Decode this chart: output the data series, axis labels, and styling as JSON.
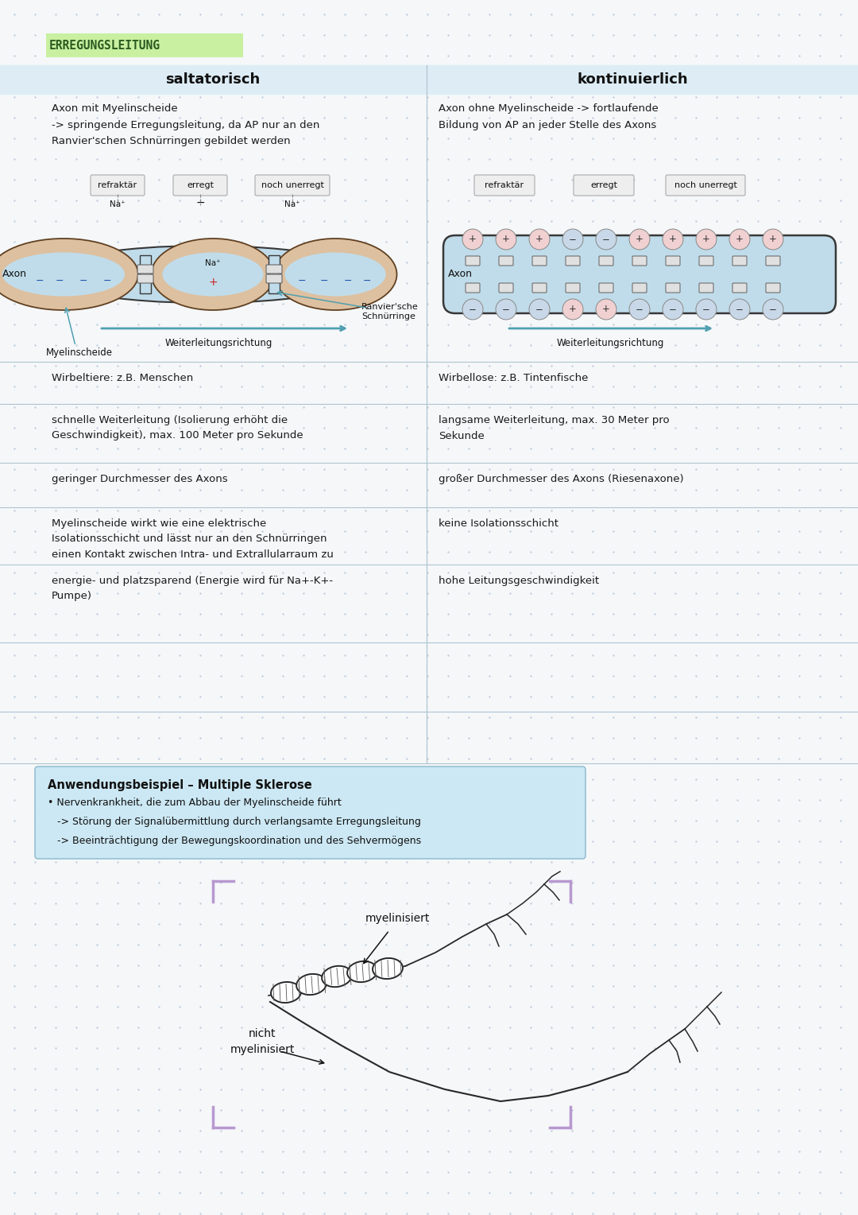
{
  "title": "ERREGUNGSLEITUNG",
  "title_bg": "#c8f0a0",
  "bg_color": "#f5f7f9",
  "header_bg": "#deedf5",
  "saltatorisch": "saltatorisch",
  "kontinuierlich": "kontinuierlich",
  "left_desc": "Axon mit Myelinscheide\n-> springende Erregungsleitung, da AP nur an den\nRanvier'schen Schnürringen gebildet werden",
  "right_desc": "Axon ohne Myelinscheide -> fortlaufende\nBildung von AP an jeder Stelle des Axons",
  "left_state_labels": [
    "refraktär",
    "erregt",
    "noch unerregt"
  ],
  "right_state_labels": [
    "refraktär",
    "erregt",
    "noch unerregt"
  ],
  "axon_label_left": "Axon",
  "myelin_label": "Myelinscheide",
  "weiter_label_left": "Weiterleitungsrichtung",
  "ranvier_label": "Ranvier'sche\nSchnürringe",
  "axon_label_right": "Axon",
  "weiter_label_right": "Weiterleitungsrichtung",
  "comparison_left": [
    "Wirbeltiere: z.B. Menschen",
    "schnelle Weiterleitung (Isolierung erhöht die\nGeschwindigkeit), max. 100 Meter pro Sekunde",
    "geringer Durchmesser des Axons",
    "Myelinscheide wirkt wie eine elektrische\nIsolationsschicht und lässt nur an den Schnürringen\neinen Kontakt zwischen Intra- und Extrallularraum zu",
    "energie- und platzsparend (Energie wird für Na+-K+-\nPumpe)"
  ],
  "comparison_right": [
    "Wirbellose: z.B. Tintenfische",
    "langsame Weiterleitung, max. 30 Meter pro\nSekunde",
    "großer Durchmesser des Axons (Riesenaxone)",
    "keine Isolationsschicht",
    "hohe Leitungsgeschwindigkeit"
  ],
  "anwendung_title": "Anwendungsbeispiel – Multiple Sklerose",
  "anwendung_bg": "#cce8f4",
  "anwendung_items": [
    "• Nervenkrankheit, die zum Abbau der Myelinscheide führt",
    "   -> Störung der Signalübermittlung durch verlangsamte Erregungsleitung",
    "   -> Beeinträchtigung der Bewegungskoordination und des Sehvermögens"
  ],
  "myelin_label_draw": "myelinisiert",
  "nicht_myelin_label": "nicht\nmyelinisiert",
  "purple_color": "#b898d0",
  "dot_color": "#b8c8d8",
  "divider_color": "#b0c4d0",
  "arrow_color": "#50a0b0",
  "text_color": "#1a1a1a",
  "myelin_fill": "#ddc0a0",
  "node_fill": "#c0dcea",
  "axon_fill": "#c0dcea",
  "axon_stroke": "#383838"
}
